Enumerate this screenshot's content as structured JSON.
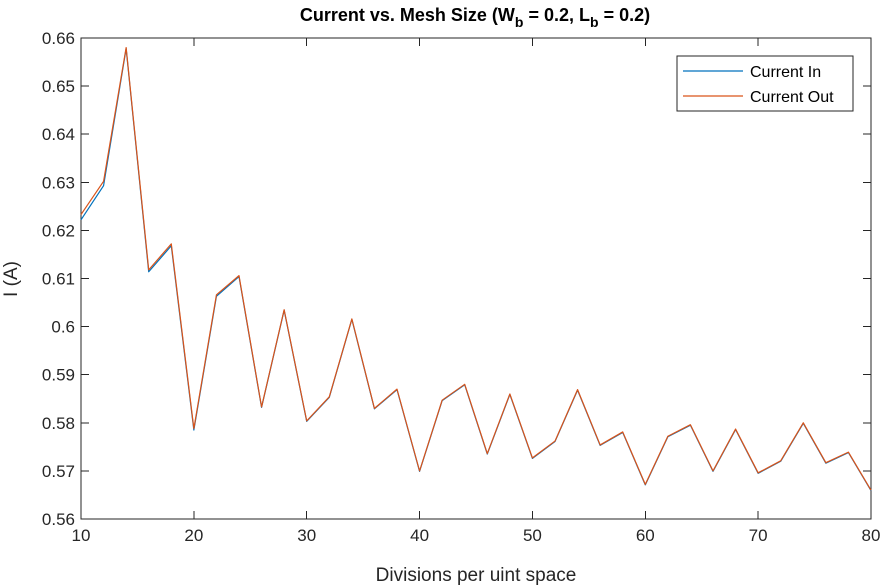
{
  "chart_data": {
    "type": "line",
    "title": {
      "main": "Current vs. Mesh Size (W",
      "sub1": "b",
      "mid": " = 0.2, L",
      "sub2": "b",
      "end": " = 0.2)"
    },
    "xlabel": "Divisions per uint space",
    "ylabel": "I (A)",
    "xlim": [
      10,
      80
    ],
    "ylim": [
      0.56,
      0.66
    ],
    "xticks": [
      10,
      20,
      30,
      40,
      50,
      60,
      70,
      80
    ],
    "yticks": [
      0.56,
      0.57,
      0.58,
      0.59,
      0.6,
      0.61,
      0.62,
      0.63,
      0.64,
      0.65,
      0.66
    ],
    "xtick_labels": [
      "10",
      "20",
      "30",
      "40",
      "50",
      "60",
      "70",
      "80"
    ],
    "ytick_labels": [
      "0.56",
      "0.57",
      "0.58",
      "0.59",
      "0.6",
      "0.61",
      "0.62",
      "0.63",
      "0.64",
      "0.65",
      "0.66"
    ],
    "grid": false,
    "legend": "top-right",
    "x": [
      10,
      12,
      14,
      16,
      18,
      20,
      22,
      24,
      26,
      28,
      30,
      32,
      34,
      36,
      38,
      40,
      42,
      44,
      46,
      48,
      50,
      52,
      54,
      56,
      58,
      60,
      62,
      64,
      66,
      68,
      70,
      72,
      74,
      76,
      78,
      80
    ],
    "series": [
      {
        "name": "Current In",
        "color": "#0072BD",
        "values": [
          0.6222,
          0.6293,
          0.6578,
          0.6114,
          0.6168,
          0.5785,
          0.6063,
          0.6104,
          0.5832,
          0.6034,
          0.5803,
          0.5853,
          0.6015,
          0.5829,
          0.5869,
          0.5699,
          0.5846,
          0.5879,
          0.5735,
          0.5859,
          0.5726,
          0.5761,
          0.5868,
          0.5753,
          0.578,
          0.5671,
          0.5771,
          0.5795,
          0.5699,
          0.5786,
          0.5695,
          0.572,
          0.5799,
          0.5716,
          0.5738,
          0.5659
        ]
      },
      {
        "name": "Current Out",
        "color": "#D95319",
        "values": [
          0.6233,
          0.6302,
          0.658,
          0.6118,
          0.6172,
          0.5788,
          0.6066,
          0.6106,
          0.5833,
          0.6035,
          0.5804,
          0.5854,
          0.6016,
          0.583,
          0.587,
          0.57,
          0.5847,
          0.588,
          0.5736,
          0.586,
          0.5727,
          0.5762,
          0.5869,
          0.5754,
          0.5781,
          0.5672,
          0.5772,
          0.5796,
          0.57,
          0.5787,
          0.5696,
          0.5721,
          0.58,
          0.5717,
          0.5739,
          0.566
        ]
      }
    ]
  }
}
